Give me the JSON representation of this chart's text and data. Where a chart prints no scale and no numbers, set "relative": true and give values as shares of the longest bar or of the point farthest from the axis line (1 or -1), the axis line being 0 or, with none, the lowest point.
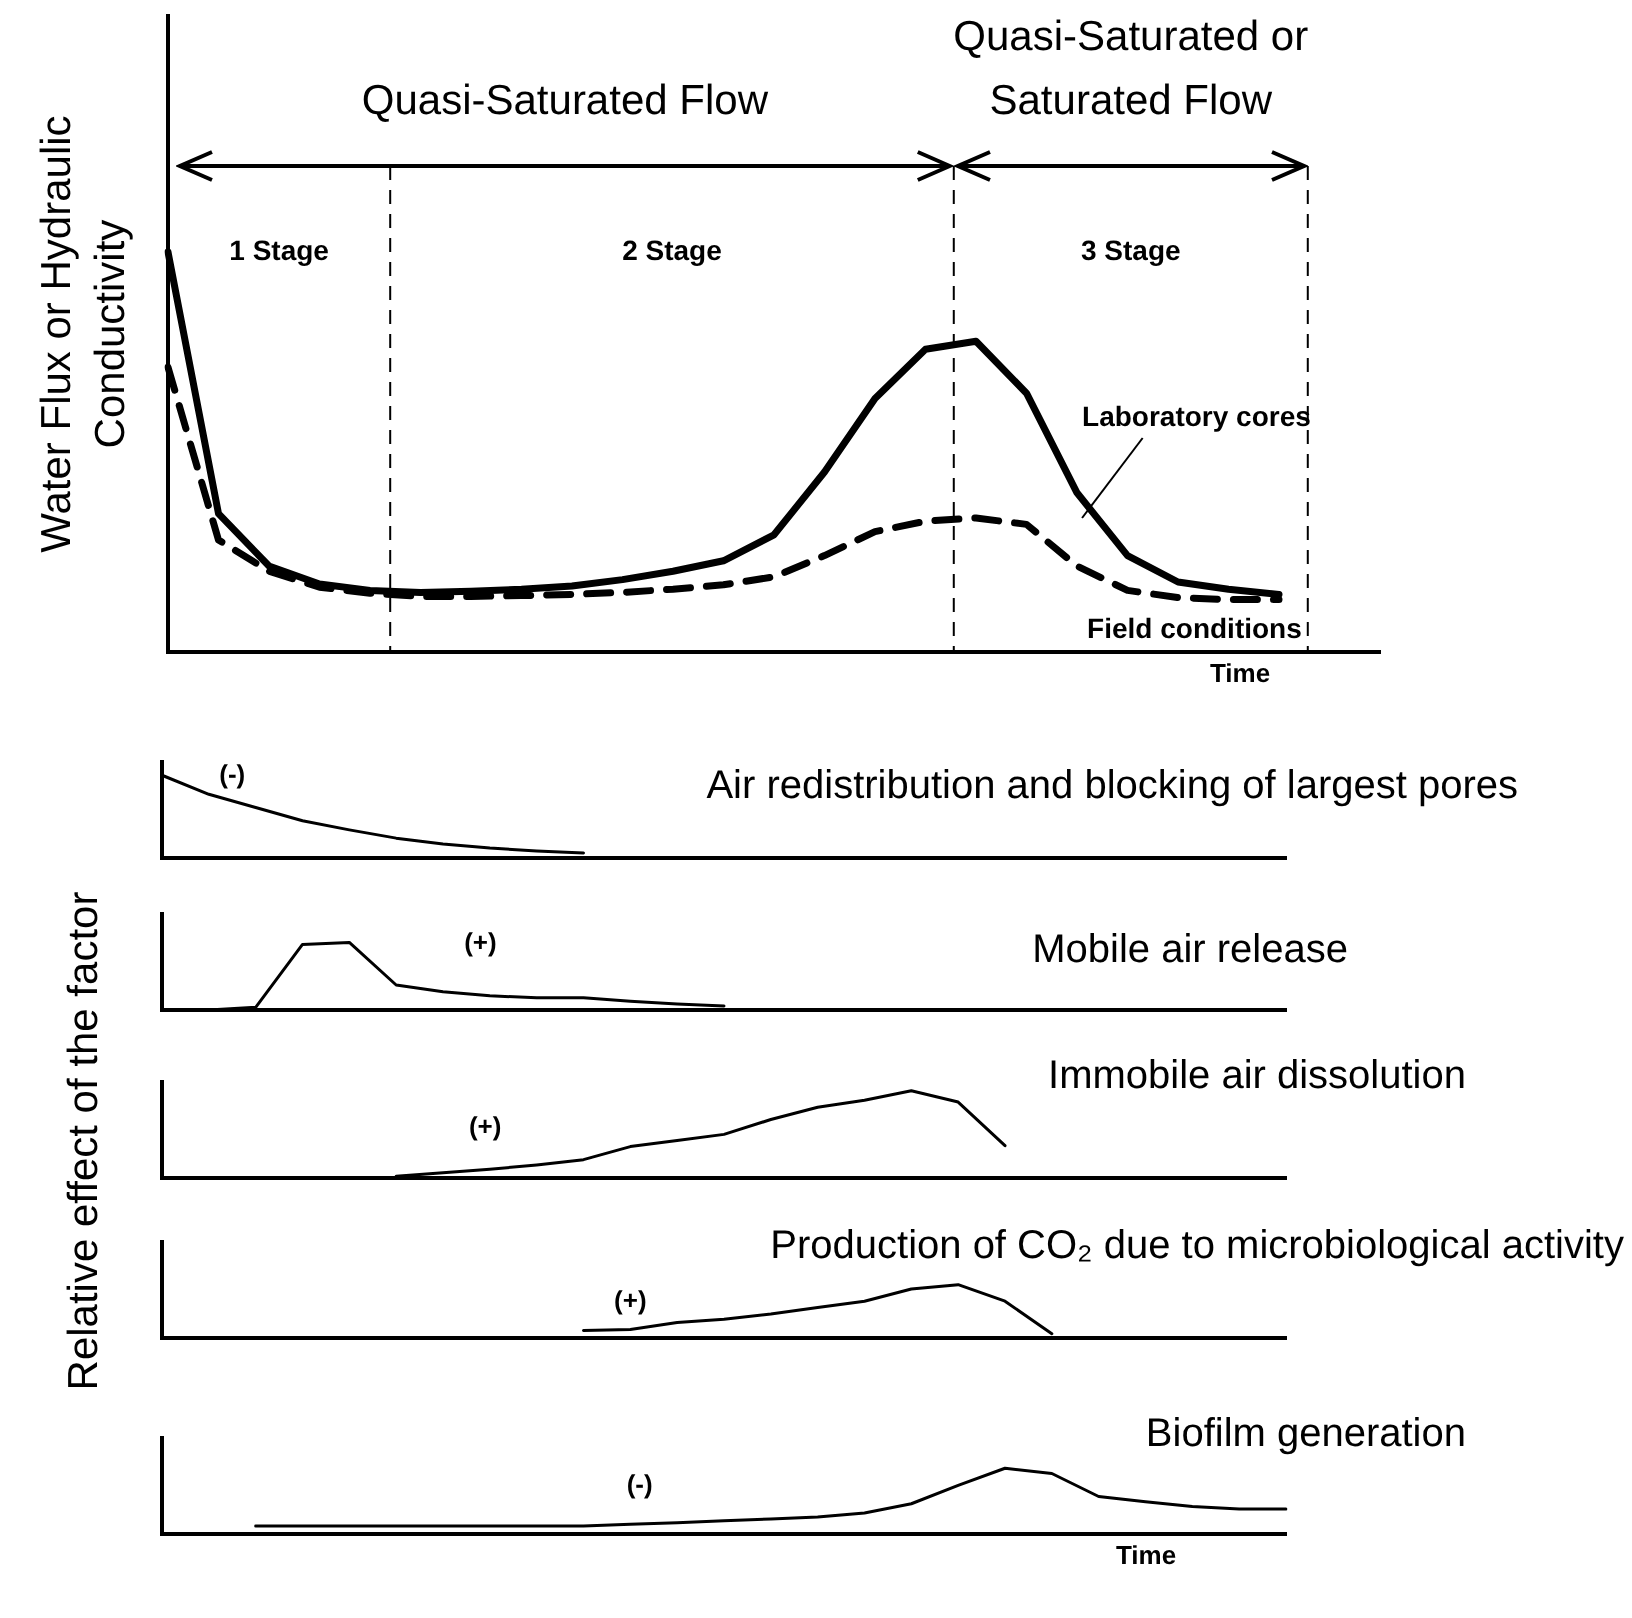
{
  "chart_data": [
    {
      "type": "line",
      "ylabel": "Water Flux or Hydraulic Conductivity",
      "xlabel": "Time",
      "relative": true,
      "categories": [
        null,
        null,
        null,
        null,
        null,
        null,
        null,
        null,
        null,
        null,
        null,
        null,
        null,
        null,
        null,
        null,
        null,
        null,
        null,
        null,
        null,
        null,
        null,
        null,
        null
      ],
      "series": [
        {
          "name": "Laboratory cores",
          "color": "#000000",
          "line_style": "solid",
          "values": [
            1,
            0.346,
            0.215,
            0.17,
            0.154,
            0.149,
            0.152,
            0.157,
            0.165,
            0.181,
            0.202,
            0.228,
            0.293,
            0.45,
            0.634,
            0.757,
            0.777,
            0.647,
            0.398,
            0.241,
            0.175,
            0.157,
            0.144,
            null,
            null
          ]
        },
        {
          "name": "Field conditions",
          "color": "#000000",
          "line_style": "dashed",
          "values": [
            0.712,
            0.28,
            0.202,
            0.162,
            0.147,
            0.139,
            0.139,
            0.141,
            0.144,
            0.149,
            0.157,
            0.168,
            0.188,
            0.241,
            0.301,
            0.327,
            0.335,
            0.319,
            0.215,
            0.154,
            0.136,
            0.131,
            0.131,
            null,
            null
          ]
        }
      ],
      "annotations": [
        "Quasi-Saturated Flow",
        "Quasi-Saturated or Saturated Flow",
        "1 Stage",
        "2 Stage",
        "3 Stage"
      ]
    },
    {
      "type": "line",
      "title": "Air redistribution and blocking of largest pores",
      "ylabel": "Relative effect of the factor",
      "relative": true,
      "categories": [
        null,
        null,
        null,
        null,
        null,
        null,
        null,
        null,
        null,
        null,
        null,
        null,
        null,
        null,
        null,
        null,
        null,
        null,
        null,
        null,
        null,
        null,
        null,
        null,
        null
      ],
      "color": "#000000",
      "values": [
        1,
        0.77,
        0.61,
        0.45,
        0.34,
        0.24,
        0.17,
        0.12,
        0.085,
        0.061,
        null,
        null,
        null,
        null,
        null,
        null,
        null,
        null,
        null,
        null,
        null,
        null,
        null,
        null,
        null
      ],
      "annotations": [
        "(-)"
      ]
    },
    {
      "type": "line",
      "title": "Mobile air release",
      "relative": true,
      "categories": [
        null,
        null,
        null,
        null,
        null,
        null,
        null,
        null,
        null,
        null,
        null,
        null,
        null,
        null,
        null,
        null,
        null,
        null,
        null,
        null,
        null,
        null,
        null,
        null,
        null
      ],
      "color": "#000000",
      "values": [
        null,
        0,
        0.04,
        0.97,
        1,
        0.37,
        0.27,
        0.21,
        0.18,
        0.18,
        0.13,
        0.09,
        0.06,
        null,
        null,
        null,
        null,
        null,
        null,
        null,
        null,
        null,
        null,
        null,
        null
      ],
      "annotations": [
        "(+)"
      ]
    },
    {
      "type": "line",
      "title": "Immobile air dissolution",
      "relative": true,
      "categories": [
        null,
        null,
        null,
        null,
        null,
        null,
        null,
        null,
        null,
        null,
        null,
        null,
        null,
        null,
        null,
        null,
        null,
        null,
        null,
        null,
        null,
        null,
        null,
        null,
        null
      ],
      "color": "#000000",
      "values": [
        null,
        null,
        null,
        null,
        null,
        0.02,
        0.06,
        0.1,
        0.15,
        0.21,
        0.36,
        0.43,
        0.5,
        0.67,
        0.81,
        0.89,
        1,
        0.87,
        0.37,
        null,
        null,
        null,
        null,
        null,
        null
      ],
      "annotations": [
        "(+)"
      ]
    },
    {
      "type": "line",
      "title": "Production of CO₂ due to microbiological activity",
      "relative": true,
      "categories": [
        null,
        null,
        null,
        null,
        null,
        null,
        null,
        null,
        null,
        null,
        null,
        null,
        null,
        null,
        null,
        null,
        null,
        null,
        null,
        null,
        null,
        null,
        null,
        null,
        null
      ],
      "color": "#000000",
      "values": [
        null,
        null,
        null,
        null,
        null,
        null,
        null,
        null,
        null,
        0.14,
        0.16,
        0.29,
        0.35,
        0.45,
        0.57,
        0.69,
        0.92,
        1,
        0.69,
        0.08,
        null,
        null,
        null,
        null,
        null
      ],
      "annotations": [
        "(+)"
      ]
    },
    {
      "type": "line",
      "title": "Biofilm generation",
      "xlabel": "Time",
      "relative": true,
      "categories": [
        null,
        null,
        null,
        null,
        null,
        null,
        null,
        null,
        null,
        null,
        null,
        null,
        null,
        null,
        null,
        null,
        null,
        null,
        null,
        null,
        null,
        null,
        null,
        null,
        null
      ],
      "color": "#000000",
      "values": [
        null,
        null,
        0.12,
        0.12,
        0.12,
        0.12,
        0.12,
        0.12,
        0.12,
        0.12,
        0.15,
        0.17,
        0.2,
        0.23,
        0.26,
        0.32,
        0.46,
        0.74,
        1,
        0.92,
        0.57,
        0.49,
        0.42,
        0.38,
        0.38
      ],
      "annotations": [
        "(-)"
      ]
    }
  ]
}
